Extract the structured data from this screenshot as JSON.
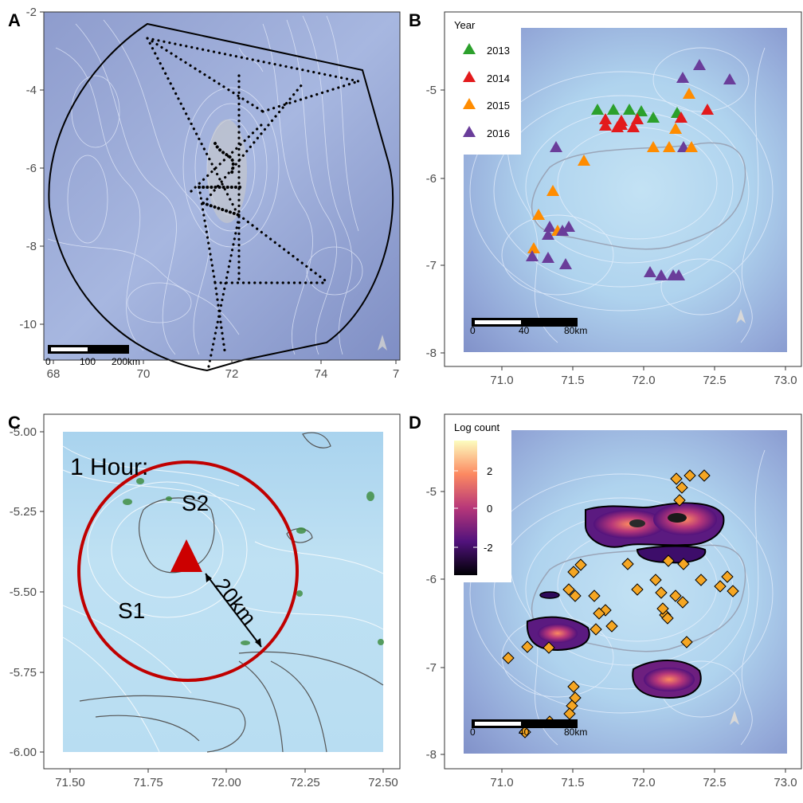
{
  "panels": {
    "A": {
      "label": "A",
      "x_ticks": [
        "68",
        "70",
        "72",
        "74",
        "7"
      ],
      "y_ticks": [
        "-2",
        "-4",
        "-6",
        "-8",
        "-10"
      ],
      "scale_bar": [
        "0",
        "100",
        "200km"
      ]
    },
    "B": {
      "label": "B",
      "x_ticks": [
        "71.0",
        "71.5",
        "72.0",
        "72.5",
        "73.0"
      ],
      "y_ticks": [
        "-5",
        "-6",
        "-7",
        "-8"
      ],
      "scale_bar": [
        "0",
        "40",
        "80km"
      ],
      "legend": {
        "title": "Year",
        "items": [
          {
            "label": "2013",
            "color": "#2ca02c"
          },
          {
            "label": "2014",
            "color": "#e31a1c"
          },
          {
            "label": "2015",
            "color": "#ff8c00"
          },
          {
            "label": "2016",
            "color": "#6a3d9a"
          }
        ]
      }
    },
    "C": {
      "label": "C",
      "x_ticks": [
        "71.50",
        "71.75",
        "72.00",
        "72.25",
        "72.50"
      ],
      "y_ticks": [
        "-5.00",
        "-5.25",
        "-5.50",
        "-5.75",
        "-6.00"
      ],
      "annotations": {
        "title": "1 Hour:",
        "s1": "S1",
        "s2": "S2",
        "distance": "20km"
      }
    },
    "D": {
      "label": "D",
      "x_ticks": [
        "71.0",
        "71.5",
        "72.0",
        "72.5",
        "73.0"
      ],
      "y_ticks": [
        "-5",
        "-6",
        "-7",
        "-8"
      ],
      "scale_bar": [
        "0",
        "40",
        "80km"
      ],
      "legend": {
        "title": "Log count",
        "ticks": [
          "2",
          "0",
          "-2"
        ]
      }
    }
  },
  "colors": {
    "ocean_deep": "#7f8ec4",
    "ocean_shallow": "#b9dcf0",
    "track": "#000000",
    "circle": "#c00000",
    "station": "#cc0000",
    "diamond": "#f5a623"
  }
}
